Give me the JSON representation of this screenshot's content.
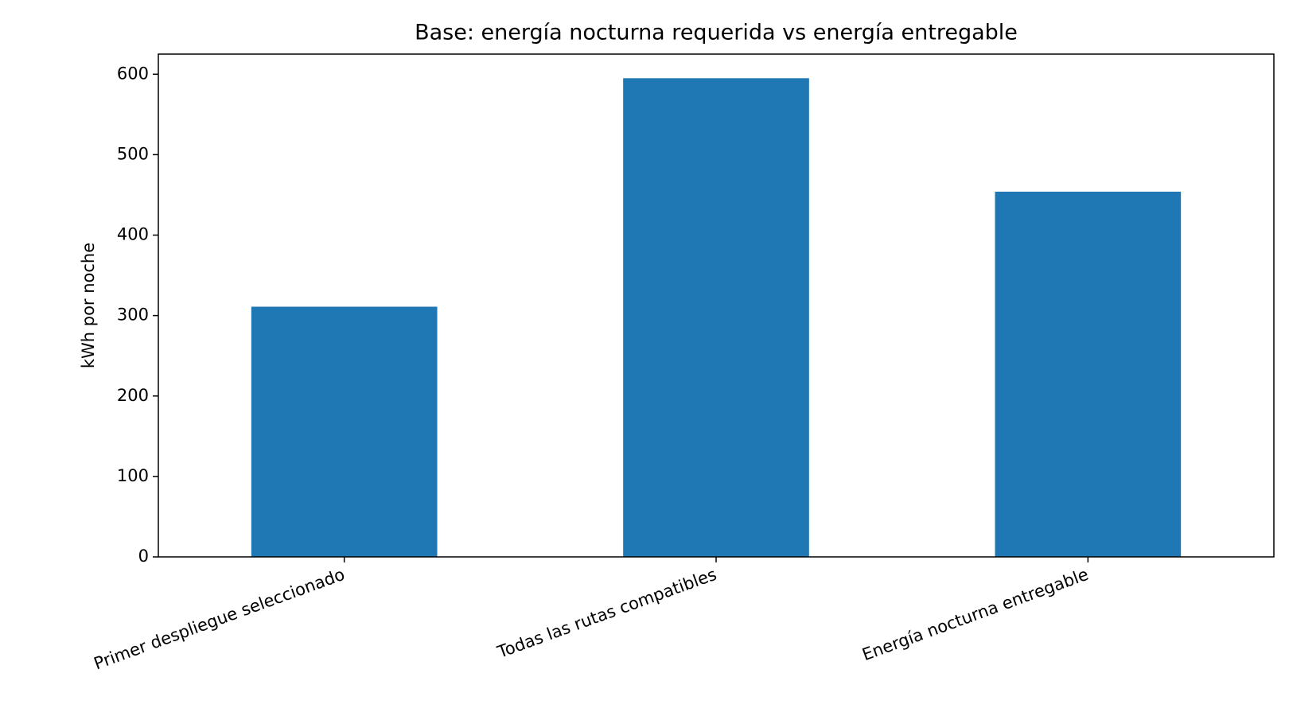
{
  "chart_data": {
    "type": "bar",
    "title": "Base: energía nocturna requerida vs energía entregable",
    "y_label": "kWh por noche",
    "categories": [
      "Primer despliegue seleccionado",
      "Todas las rutas compatibles",
      "Energía nocturna entregable"
    ],
    "values": [
      311,
      595,
      454
    ],
    "color": "#1f77b4",
    "ylim": [
      0,
      625
    ],
    "yticks": [
      0,
      100,
      200,
      300,
      400,
      500,
      600
    ],
    "grid": false
  }
}
